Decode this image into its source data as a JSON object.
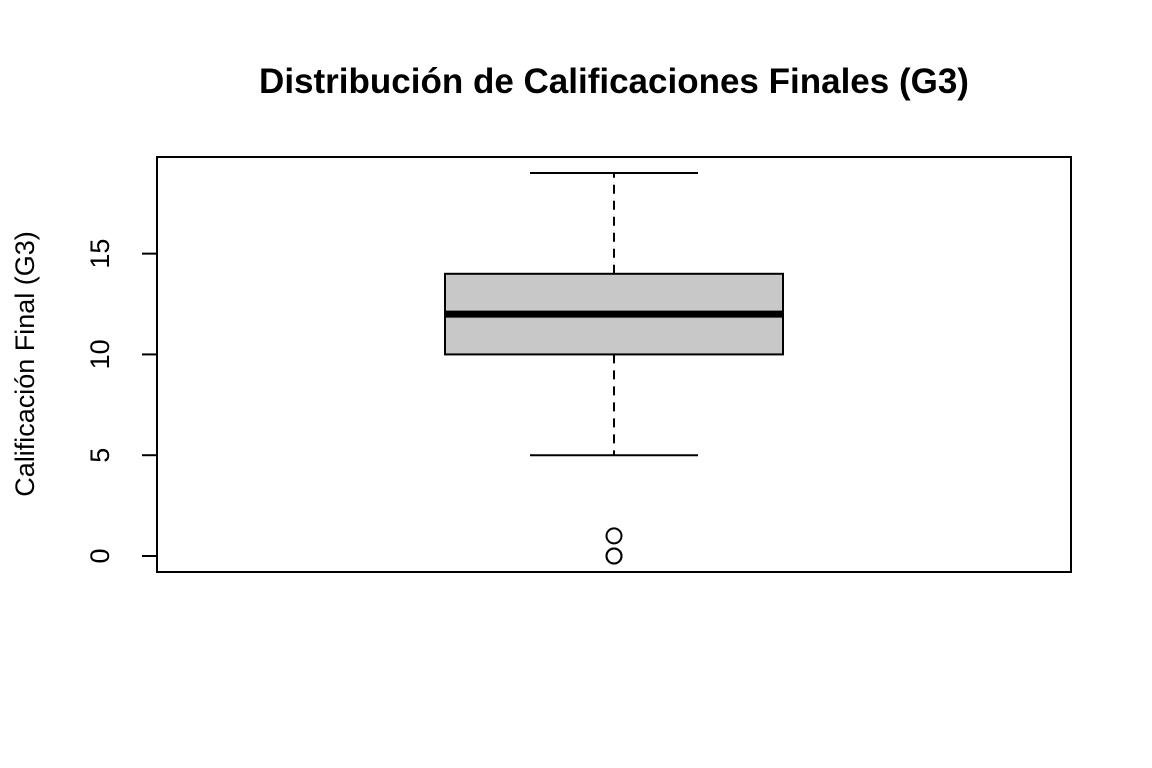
{
  "chart_data": {
    "type": "boxplot",
    "title": "Distribución de Calificaciones Finales (G3)",
    "xlabel": "",
    "ylabel": "Calificación Final (G3)",
    "ylim": [
      0,
      19
    ],
    "y_ticks": [
      0,
      5,
      10,
      15
    ],
    "grid": false,
    "box": {
      "min": 5,
      "q1": 10,
      "median": 12,
      "q3": 14,
      "max": 19,
      "outliers": [
        0,
        0,
        1
      ]
    },
    "colors": {
      "box_fill": "#c8c8c8",
      "line": "#000000"
    }
  }
}
